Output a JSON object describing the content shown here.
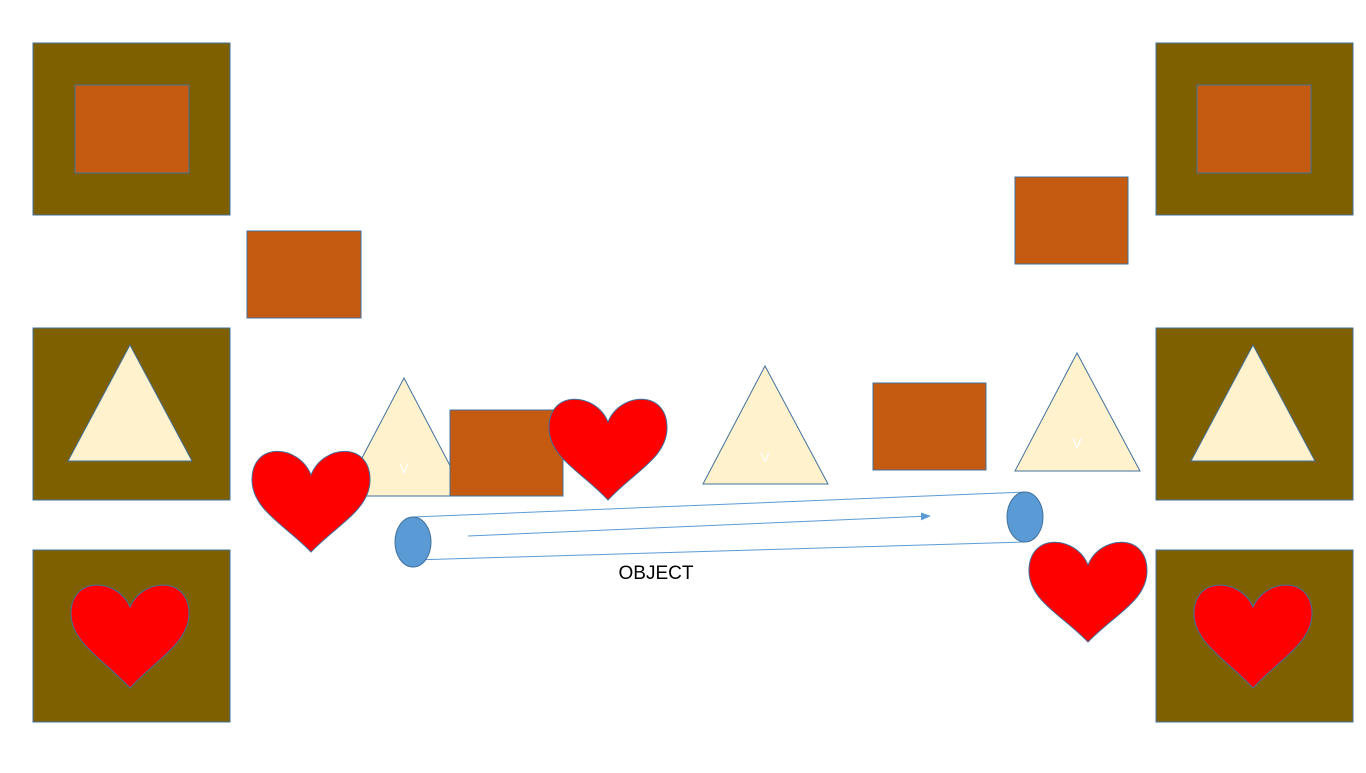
{
  "colors": {
    "bin": "#7f6000",
    "square": "#c55a11",
    "triangle": "#fff2cc",
    "heart": "#ff0000",
    "conveyor_end": "#5b9bd5",
    "conveyor_line": "#5b9bd5",
    "outline": "#41719c"
  },
  "bins": {
    "left": [
      {
        "name": "bin-left-square",
        "shape": "square-icon"
      },
      {
        "name": "bin-left-triangle",
        "shape": "triangle-icon"
      },
      {
        "name": "bin-left-heart",
        "shape": "heart-icon"
      }
    ],
    "right": [
      {
        "name": "bin-right-square",
        "shape": "square-icon"
      },
      {
        "name": "bin-right-triangle",
        "shape": "triangle-icon"
      },
      {
        "name": "bin-right-heart",
        "shape": "heart-icon"
      }
    ]
  },
  "items": {
    "triangle_mark": "V"
  },
  "conveyor": {
    "label": "OBJECT"
  }
}
